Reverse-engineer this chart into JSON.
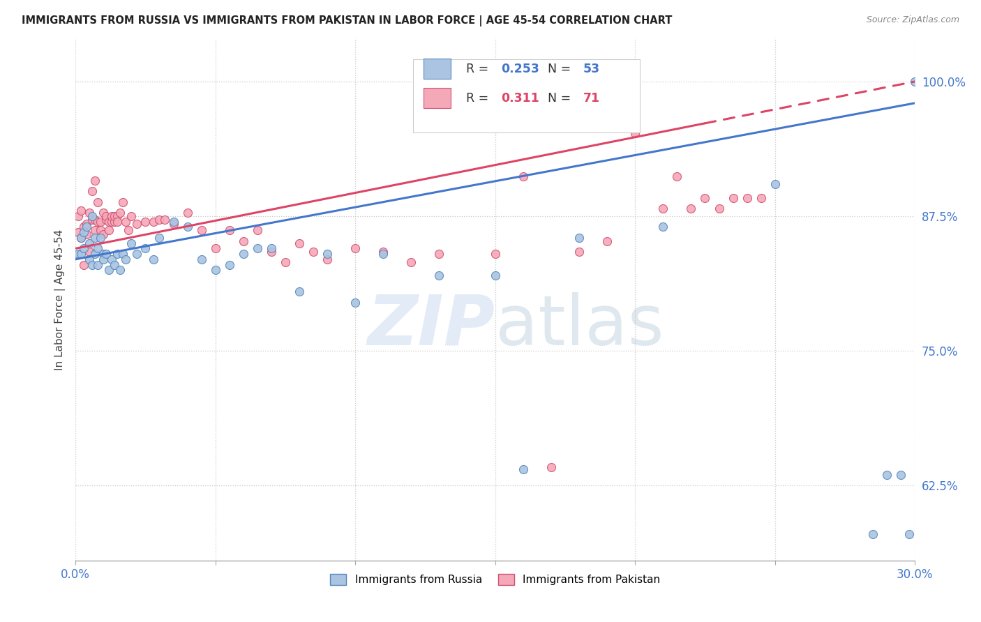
{
  "title": "IMMIGRANTS FROM RUSSIA VS IMMIGRANTS FROM PAKISTAN IN LABOR FORCE | AGE 45-54 CORRELATION CHART",
  "source": "Source: ZipAtlas.com",
  "ylabel": "In Labor Force | Age 45-54",
  "xlim": [
    0.0,
    0.3
  ],
  "ylim": [
    0.555,
    1.04
  ],
  "yticks": [
    0.625,
    0.75,
    0.875,
    1.0
  ],
  "ytick_labels": [
    "62.5%",
    "75.0%",
    "87.5%",
    "100.0%"
  ],
  "xticks": [
    0.0,
    0.05,
    0.1,
    0.15,
    0.2,
    0.25,
    0.3
  ],
  "xtick_labels": [
    "0.0%",
    "",
    "",
    "",
    "",
    "",
    "30.0%"
  ],
  "russia_color": "#aac4e2",
  "pakistan_color": "#f5a8b8",
  "russia_edge_color": "#5588bb",
  "pakistan_edge_color": "#d05070",
  "trend_russia_color": "#4477cc",
  "trend_pakistan_color": "#dd4466",
  "legend_R_russia": "0.253",
  "legend_N_russia": "53",
  "legend_R_pakistan": "0.311",
  "legend_N_pakistan": "71",
  "watermark_color": "#ddeeff",
  "russia_x": [
    0.001,
    0.002,
    0.002,
    0.003,
    0.003,
    0.004,
    0.005,
    0.005,
    0.006,
    0.006,
    0.007,
    0.007,
    0.008,
    0.008,
    0.009,
    0.01,
    0.01,
    0.011,
    0.012,
    0.013,
    0.014,
    0.015,
    0.016,
    0.017,
    0.018,
    0.02,
    0.022,
    0.025,
    0.028,
    0.03,
    0.035,
    0.04,
    0.045,
    0.05,
    0.055,
    0.06,
    0.065,
    0.07,
    0.08,
    0.09,
    0.1,
    0.11,
    0.13,
    0.15,
    0.16,
    0.18,
    0.21,
    0.25,
    0.285,
    0.29,
    0.295,
    0.298,
    0.3
  ],
  "russia_y": [
    0.84,
    0.855,
    0.84,
    0.86,
    0.845,
    0.865,
    0.835,
    0.85,
    0.875,
    0.83,
    0.84,
    0.855,
    0.845,
    0.83,
    0.855,
    0.84,
    0.835,
    0.84,
    0.825,
    0.835,
    0.83,
    0.84,
    0.825,
    0.84,
    0.835,
    0.85,
    0.84,
    0.845,
    0.835,
    0.855,
    0.87,
    0.865,
    0.835,
    0.825,
    0.83,
    0.84,
    0.845,
    0.845,
    0.805,
    0.84,
    0.795,
    0.84,
    0.82,
    0.82,
    0.64,
    0.855,
    0.865,
    0.905,
    0.58,
    0.635,
    0.635,
    0.58,
    1.0
  ],
  "pakistan_x": [
    0.001,
    0.001,
    0.002,
    0.002,
    0.003,
    0.003,
    0.004,
    0.004,
    0.005,
    0.005,
    0.006,
    0.006,
    0.007,
    0.007,
    0.007,
    0.008,
    0.008,
    0.009,
    0.009,
    0.01,
    0.01,
    0.011,
    0.011,
    0.012,
    0.012,
    0.013,
    0.013,
    0.014,
    0.014,
    0.015,
    0.015,
    0.016,
    0.017,
    0.018,
    0.019,
    0.02,
    0.022,
    0.025,
    0.028,
    0.03,
    0.032,
    0.035,
    0.04,
    0.045,
    0.05,
    0.055,
    0.06,
    0.065,
    0.07,
    0.075,
    0.08,
    0.085,
    0.09,
    0.1,
    0.11,
    0.12,
    0.13,
    0.15,
    0.16,
    0.17,
    0.18,
    0.19,
    0.2,
    0.21,
    0.215,
    0.22,
    0.225,
    0.23,
    0.235,
    0.24,
    0.245
  ],
  "pakistan_y": [
    0.875,
    0.86,
    0.88,
    0.855,
    0.865,
    0.83,
    0.858,
    0.868,
    0.842,
    0.878,
    0.872,
    0.898,
    0.862,
    0.908,
    0.872,
    0.87,
    0.888,
    0.87,
    0.862,
    0.858,
    0.878,
    0.872,
    0.875,
    0.87,
    0.862,
    0.87,
    0.875,
    0.87,
    0.875,
    0.875,
    0.87,
    0.878,
    0.888,
    0.87,
    0.862,
    0.875,
    0.868,
    0.87,
    0.87,
    0.872,
    0.872,
    0.868,
    0.878,
    0.862,
    0.845,
    0.862,
    0.852,
    0.862,
    0.842,
    0.832,
    0.85,
    0.842,
    0.835,
    0.845,
    0.842,
    0.832,
    0.84,
    0.84,
    0.912,
    0.642,
    0.842,
    0.852,
    0.952,
    0.882,
    0.912,
    0.882,
    0.892,
    0.882,
    0.892,
    0.892,
    0.892
  ]
}
